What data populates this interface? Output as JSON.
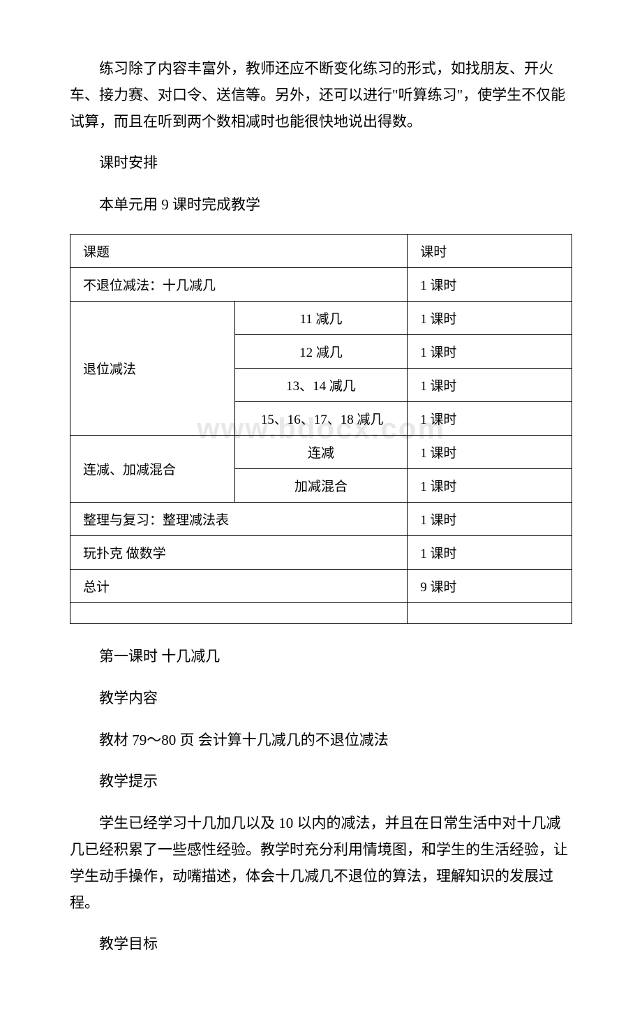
{
  "watermark": "www.bdocx.com",
  "paragraphs": {
    "intro": "练习除了内容丰富外，教师还应不断变化练习的形式，如找朋友、开火车、接力赛、对口令、送信等。另外，还可以进行\"听算练习\"，使学生不仅能试算，而且在听到两个数相减时也能很快地说出得数。",
    "schedule_title": "课时安排",
    "schedule_desc": "本单元用 9 课时完成教学",
    "lesson_title": "第一课时 十几减几",
    "content_label": "教学内容",
    "content_desc": "教材 79～80 页 会计算十几减几的不退位减法",
    "tips_label": "教学提示",
    "tips_desc": "学生已经学习十几加几以及 10 以内的减法，并且在日常生活中对十几减几已经积累了一些感性经验。教学时充分利用情境图，和学生的生活经验，让学生动手操作，动嘴描述，体会十几减几不退位的算法，理解知识的发展过程。",
    "goal_label": "教学目标"
  },
  "table": {
    "header": {
      "topic": "课题",
      "time": "课时"
    },
    "rows": {
      "r1_topic": "不退位减法：十几减几",
      "r1_time": "1 课时",
      "r2_label": "退位减法",
      "r2a_sub": "11 减几",
      "r2a_time": "1 课时",
      "r2b_sub": "12 减几",
      "r2b_time": "1 课时",
      "r2c_sub": "13、14 减几",
      "r2c_time": "1 课时",
      "r2d_sub": "　15、16、17、18 减几",
      "r2d_time": "1 课时",
      "r3_label": "连减、加减混合",
      "r3a_sub": "连减",
      "r3a_time": "1 课时",
      "r3b_sub": "加减混合",
      "r3b_time": "1 课时",
      "r4_topic": "整理与复习：整理减法表",
      "r4_time": "1 课时",
      "r5_topic": "玩扑克 做数学",
      "r5_time": "1 课时",
      "r6_topic": "总计",
      "r6_time": "9 课时"
    }
  }
}
